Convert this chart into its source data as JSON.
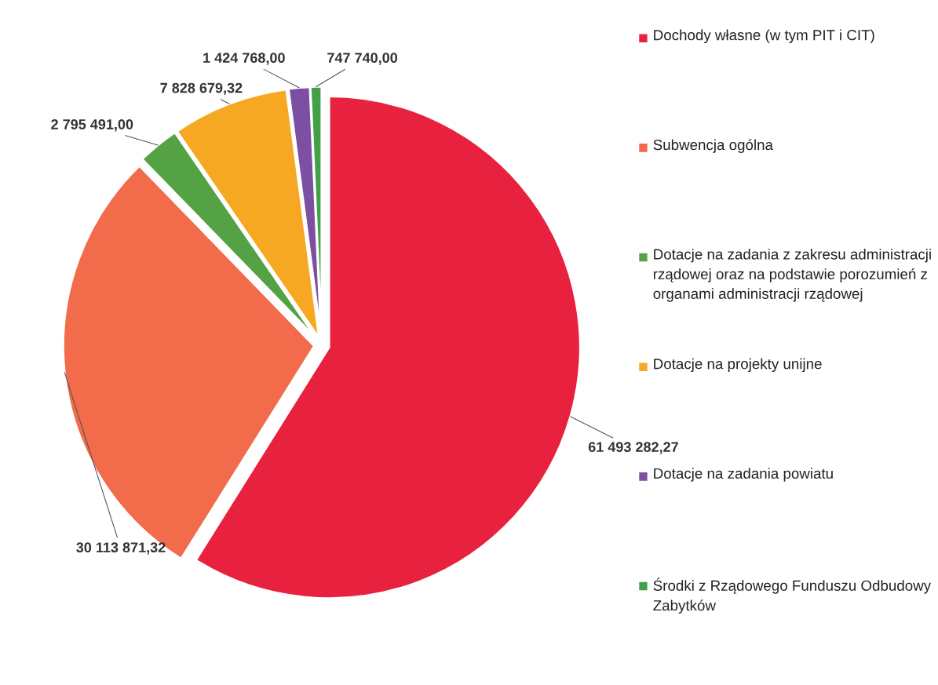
{
  "chart_data": {
    "type": "pie",
    "categories": [
      "Dochody własne (w tym PIT i CIT)",
      "Subwencja ogólna",
      "Dotacje na zadania z zakresu administracji rządowej oraz na podstawie porozumień z organami administracji rządowej",
      "Dotacje na projekty unijne",
      "Dotacje na zadania powiatu",
      "Środki z Rządowego Funduszu Odbudowy Zabytków"
    ],
    "values": [
      61493282.27,
      30113871.32,
      2795491.0,
      7828679.32,
      1424768.0,
      747740.0
    ],
    "value_labels": [
      "61 493 282,27",
      "30 113 871,32",
      "2 795 491,00",
      "7 828 679,32",
      "1 424 768,00",
      "747 740,00"
    ],
    "colors": [
      "#e8213e",
      "#f26b4a",
      "#54a244",
      "#f7a823",
      "#7d4fa3",
      "#43a046"
    ],
    "legend": "right"
  }
}
